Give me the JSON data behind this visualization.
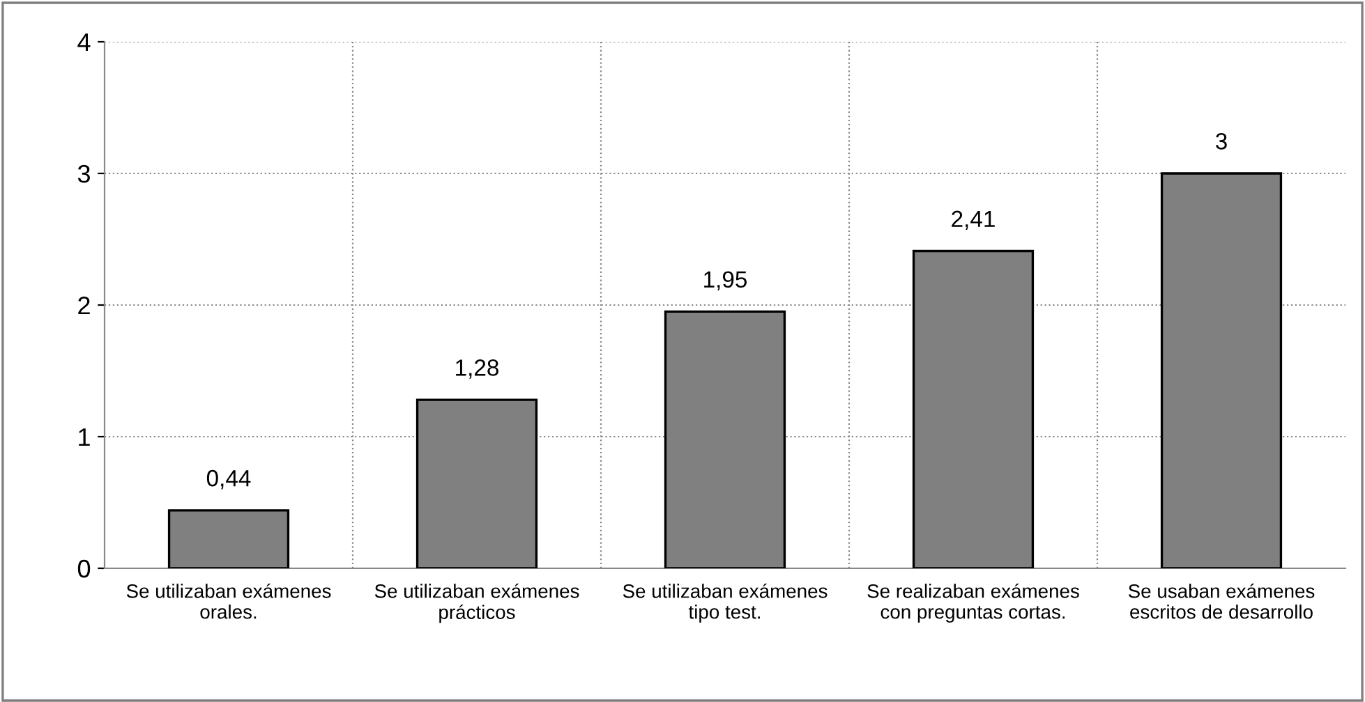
{
  "chart_data": {
    "type": "bar",
    "categories": [
      "Se utilizaban exámenes\norales.",
      "Se utilizaban exámenes\nprácticos",
      "Se utilizaban exámenes\ntipo test.",
      "Se realizaban exámenes\ncon preguntas cortas.",
      "Se usaban exámenes\nescritos de desarrollo"
    ],
    "values": [
      0.44,
      1.28,
      1.95,
      2.41,
      3
    ],
    "value_labels": [
      "0,44",
      "1,28",
      "1,95",
      "2,41",
      "3"
    ],
    "color": "#808080",
    "ylim": [
      0,
      4
    ],
    "yticks": [
      0,
      1,
      2,
      3,
      4
    ],
    "grid": true,
    "legend": false
  }
}
